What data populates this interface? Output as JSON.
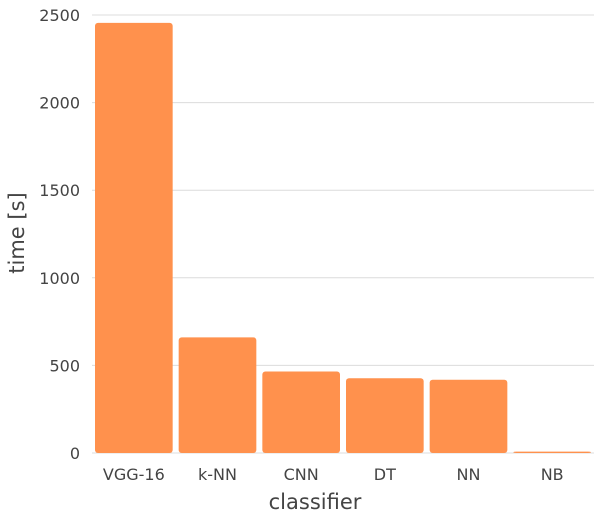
{
  "chart_data": {
    "type": "bar",
    "title": "",
    "xlabel": "classifier",
    "ylabel": "time [s]",
    "categories": [
      "VGG-16",
      "k-NN",
      "CNN",
      "DT",
      "NN",
      "NB"
    ],
    "values": [
      2455,
      660,
      465,
      427,
      418,
      8
    ],
    "ylim": [
      0,
      2500
    ],
    "yticks": [
      0,
      500,
      1000,
      1500,
      2000,
      2500
    ],
    "grid": true,
    "legend": "none",
    "bar_color": "#ff914d"
  }
}
